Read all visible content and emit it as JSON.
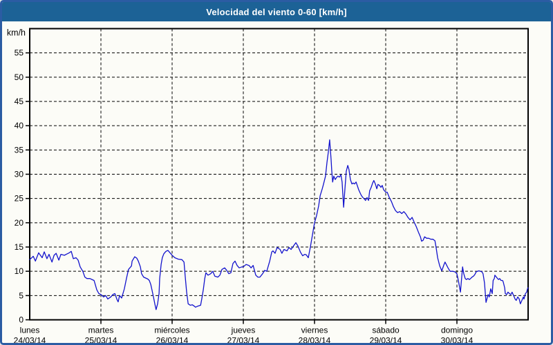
{
  "window": {
    "title": "Velocidad del viento 0-60 [km/h]"
  },
  "colors": {
    "titlebar_bg": "#1c6296",
    "titlebar_text": "#ffffff",
    "frame_border": "#2b5ca3",
    "panel_bg": "#fcfcf7",
    "plot_line": "#1212cc",
    "grid": "#000000",
    "axis": "#000000",
    "text": "#000000"
  },
  "chart_data": {
    "type": "line",
    "title": "Velocidad del viento 0-60 [km/h]",
    "grid": "dashed",
    "legend_position": "none",
    "y_axis": {
      "unit_label": "km/h",
      "min": 0,
      "max": 60,
      "tick_step": 5,
      "tick_labels": [
        "0",
        "5",
        "10",
        "15",
        "20",
        "25",
        "30",
        "35",
        "40",
        "45",
        "50",
        "55"
      ]
    },
    "x_axis": {
      "span_days": 7,
      "hours_total": 168,
      "days": [
        {
          "name": "lunes",
          "date": "24/03/14"
        },
        {
          "name": "martes",
          "date": "25/03/14"
        },
        {
          "name": "miércoles",
          "date": "26/03/14"
        },
        {
          "name": "jueves",
          "date": "27/03/14"
        },
        {
          "name": "viernes",
          "date": "28/03/14"
        },
        {
          "name": "sábado",
          "date": "29/03/14"
        },
        {
          "name": "domingo",
          "date": "30/03/14"
        }
      ]
    },
    "series": [
      {
        "name": "velocidad-del-viento",
        "x_unit": "hours_from_monday_00h",
        "y_unit": "km/h",
        "points": [
          [
            0.0,
            12.4
          ],
          [
            1.2,
            13.1
          ],
          [
            1.9,
            12.1
          ],
          [
            3.0,
            13.8
          ],
          [
            4.2,
            12.8
          ],
          [
            4.9,
            14.0
          ],
          [
            5.8,
            12.6
          ],
          [
            6.5,
            13.5
          ],
          [
            7.5,
            11.9
          ],
          [
            8.2,
            13.3
          ],
          [
            8.9,
            13.7
          ],
          [
            9.8,
            12.3
          ],
          [
            10.5,
            13.5
          ],
          [
            11.7,
            13.3
          ],
          [
            12.3,
            13.5
          ],
          [
            13.3,
            13.8
          ],
          [
            14.0,
            14.1
          ],
          [
            14.7,
            12.6
          ],
          [
            15.6,
            12.8
          ],
          [
            16.3,
            12.3
          ],
          [
            17.0,
            10.9
          ],
          [
            17.9,
            10.0
          ],
          [
            18.6,
            8.8
          ],
          [
            19.3,
            8.5
          ],
          [
            20.3,
            8.5
          ],
          [
            21.0,
            8.3
          ],
          [
            21.7,
            8.1
          ],
          [
            22.6,
            6.2
          ],
          [
            23.3,
            5.4
          ],
          [
            24.0,
            5.2
          ],
          [
            24.9,
            4.7
          ],
          [
            25.6,
            5.0
          ],
          [
            26.3,
            4.3
          ],
          [
            27.3,
            4.7
          ],
          [
            28.0,
            5.2
          ],
          [
            28.7,
            5.4
          ],
          [
            29.4,
            4.2
          ],
          [
            29.8,
            3.7
          ],
          [
            30.3,
            5.0
          ],
          [
            31.0,
            4.5
          ],
          [
            31.9,
            6.4
          ],
          [
            32.6,
            8.5
          ],
          [
            33.3,
            10.4
          ],
          [
            34.3,
            11.1
          ],
          [
            34.5,
            12.1
          ],
          [
            35.0,
            12.6
          ],
          [
            35.4,
            13.0
          ],
          [
            36.1,
            12.7
          ],
          [
            36.6,
            12.1
          ],
          [
            37.3,
            10.9
          ],
          [
            37.7,
            9.5
          ],
          [
            38.4,
            8.8
          ],
          [
            39.1,
            8.6
          ],
          [
            39.8,
            8.4
          ],
          [
            40.3,
            8.1
          ],
          [
            40.8,
            7.3
          ],
          [
            41.2,
            6.2
          ],
          [
            41.7,
            4.7
          ],
          [
            42.2,
            3.2
          ],
          [
            42.6,
            2.1
          ],
          [
            43.1,
            3.3
          ],
          [
            43.6,
            5.4
          ],
          [
            43.8,
            8.5
          ],
          [
            44.3,
            11.4
          ],
          [
            44.7,
            12.8
          ],
          [
            45.2,
            13.6
          ],
          [
            45.9,
            14.1
          ],
          [
            46.6,
            14.3
          ],
          [
            47.3,
            13.8
          ],
          [
            48.0,
            13.3
          ],
          [
            48.9,
            12.8
          ],
          [
            50.1,
            12.5
          ],
          [
            51.3,
            12.4
          ],
          [
            52.0,
            11.9
          ],
          [
            52.4,
            9.0
          ],
          [
            52.9,
            5.7
          ],
          [
            53.4,
            3.3
          ],
          [
            54.1,
            3.0
          ],
          [
            54.8,
            3.1
          ],
          [
            55.5,
            2.8
          ],
          [
            55.9,
            2.6
          ],
          [
            56.6,
            2.8
          ],
          [
            57.6,
            3.0
          ],
          [
            58.0,
            4.3
          ],
          [
            58.5,
            6.2
          ],
          [
            59.0,
            8.5
          ],
          [
            59.4,
            9.7
          ],
          [
            60.1,
            9.2
          ],
          [
            61.0,
            9.5
          ],
          [
            61.7,
            10.0
          ],
          [
            62.4,
            9.0
          ],
          [
            63.4,
            8.8
          ],
          [
            64.1,
            9.2
          ],
          [
            64.8,
            10.4
          ],
          [
            65.7,
            10.7
          ],
          [
            66.4,
            10.2
          ],
          [
            67.1,
            9.5
          ],
          [
            67.8,
            9.7
          ],
          [
            68.5,
            11.6
          ],
          [
            69.2,
            12.1
          ],
          [
            69.9,
            11.2
          ],
          [
            70.6,
            10.7
          ],
          [
            71.5,
            10.9
          ],
          [
            72.0,
            10.9
          ],
          [
            72.9,
            11.4
          ],
          [
            73.9,
            11.2
          ],
          [
            74.6,
            10.7
          ],
          [
            75.3,
            11.2
          ],
          [
            76.2,
            9.2
          ],
          [
            76.9,
            8.8
          ],
          [
            77.6,
            8.8
          ],
          [
            78.5,
            9.5
          ],
          [
            79.2,
            10.2
          ],
          [
            79.9,
            10.0
          ],
          [
            80.9,
            12.1
          ],
          [
            81.6,
            14.0
          ],
          [
            82.0,
            14.2
          ],
          [
            82.7,
            13.7
          ],
          [
            83.4,
            14.9
          ],
          [
            84.4,
            14.5
          ],
          [
            85.0,
            13.7
          ],
          [
            85.7,
            14.5
          ],
          [
            86.7,
            14.2
          ],
          [
            87.4,
            14.9
          ],
          [
            88.1,
            14.5
          ],
          [
            89.0,
            15.3
          ],
          [
            89.7,
            15.9
          ],
          [
            90.4,
            15.2
          ],
          [
            91.3,
            13.9
          ],
          [
            92.0,
            13.2
          ],
          [
            92.7,
            13.5
          ],
          [
            93.2,
            13.4
          ],
          [
            93.9,
            12.8
          ],
          [
            94.6,
            15.0
          ],
          [
            95.3,
            17.5
          ],
          [
            96.0,
            20.0
          ],
          [
            96.7,
            21.5
          ],
          [
            97.4,
            23.5
          ],
          [
            97.9,
            25.6
          ],
          [
            98.6,
            27.0
          ],
          [
            99.0,
            27.9
          ],
          [
            99.7,
            29.6
          ],
          [
            100.2,
            32.4
          ],
          [
            100.7,
            34.8
          ],
          [
            101.1,
            37.1
          ],
          [
            101.6,
            33.0
          ],
          [
            101.8,
            30.8
          ],
          [
            102.1,
            28.4
          ],
          [
            102.5,
            29.6
          ],
          [
            103.0,
            28.9
          ],
          [
            103.5,
            29.4
          ],
          [
            103.9,
            29.6
          ],
          [
            104.4,
            29.4
          ],
          [
            104.9,
            29.9
          ],
          [
            105.3,
            28.4
          ],
          [
            105.8,
            23.2
          ],
          [
            106.2,
            26.6
          ],
          [
            106.7,
            30.6
          ],
          [
            107.2,
            31.8
          ],
          [
            107.6,
            31.0
          ],
          [
            108.1,
            28.9
          ],
          [
            108.6,
            28.0
          ],
          [
            109.0,
            28.2
          ],
          [
            109.5,
            28.0
          ],
          [
            110.0,
            28.4
          ],
          [
            110.4,
            27.7
          ],
          [
            110.9,
            26.8
          ],
          [
            111.4,
            26.1
          ],
          [
            111.8,
            25.6
          ],
          [
            112.3,
            25.2
          ],
          [
            112.8,
            24.9
          ],
          [
            113.2,
            24.6
          ],
          [
            113.7,
            25.2
          ],
          [
            114.2,
            24.6
          ],
          [
            114.6,
            26.6
          ],
          [
            115.1,
            27.3
          ],
          [
            115.6,
            28.2
          ],
          [
            116.0,
            28.7
          ],
          [
            116.5,
            28.0
          ],
          [
            117.0,
            27.0
          ],
          [
            117.4,
            27.9
          ],
          [
            117.9,
            27.7
          ],
          [
            118.4,
            27.3
          ],
          [
            118.8,
            27.7
          ],
          [
            119.3,
            26.8
          ],
          [
            120.0,
            26.3
          ],
          [
            120.5,
            26.3
          ],
          [
            121.2,
            25.2
          ],
          [
            121.9,
            24.4
          ],
          [
            122.6,
            23.3
          ],
          [
            123.3,
            22.5
          ],
          [
            124.0,
            22.1
          ],
          [
            124.7,
            22.3
          ],
          [
            125.4,
            21.9
          ],
          [
            126.1,
            22.3
          ],
          [
            126.8,
            21.8
          ],
          [
            127.5,
            21.1
          ],
          [
            128.2,
            20.6
          ],
          [
            128.9,
            21.1
          ],
          [
            129.6,
            20.1
          ],
          [
            130.3,
            19.2
          ],
          [
            131.0,
            18.1
          ],
          [
            131.7,
            17.1
          ],
          [
            132.1,
            16.2
          ],
          [
            132.6,
            16.4
          ],
          [
            133.1,
            17.1
          ],
          [
            133.8,
            16.8
          ],
          [
            134.5,
            16.8
          ],
          [
            135.2,
            16.6
          ],
          [
            135.9,
            16.6
          ],
          [
            136.6,
            16.3
          ],
          [
            137.0,
            14.8
          ],
          [
            137.5,
            12.8
          ],
          [
            138.2,
            11.1
          ],
          [
            138.9,
            10.1
          ],
          [
            139.6,
            11.3
          ],
          [
            140.0,
            11.9
          ],
          [
            141.0,
            10.7
          ],
          [
            141.7,
            10.0
          ],
          [
            142.6,
            10.0
          ],
          [
            143.3,
            9.9
          ],
          [
            144.0,
            9.5
          ],
          [
            144.5,
            8.1
          ],
          [
            145.2,
            5.7
          ],
          [
            145.9,
            10.9
          ],
          [
            146.3,
            9.5
          ],
          [
            146.8,
            8.5
          ],
          [
            147.2,
            8.3
          ],
          [
            147.7,
            8.5
          ],
          [
            148.2,
            8.3
          ],
          [
            148.6,
            8.5
          ],
          [
            149.1,
            8.8
          ],
          [
            149.6,
            9.0
          ],
          [
            150.0,
            9.3
          ],
          [
            150.5,
            9.9
          ],
          [
            151.4,
            10.1
          ],
          [
            152.4,
            9.9
          ],
          [
            152.8,
            9.5
          ],
          [
            153.3,
            7.6
          ],
          [
            153.8,
            3.6
          ],
          [
            154.5,
            5.2
          ],
          [
            154.9,
            4.7
          ],
          [
            155.4,
            6.4
          ],
          [
            155.9,
            5.4
          ],
          [
            156.2,
            8.1
          ],
          [
            156.6,
            8.5
          ],
          [
            156.8,
            9.2
          ],
          [
            157.3,
            8.8
          ],
          [
            157.7,
            8.5
          ],
          [
            158.0,
            8.3
          ],
          [
            158.4,
            8.5
          ],
          [
            158.9,
            8.1
          ],
          [
            159.4,
            8.1
          ],
          [
            159.6,
            7.8
          ],
          [
            160.1,
            6.6
          ],
          [
            160.3,
            5.4
          ],
          [
            160.8,
            5.2
          ],
          [
            161.2,
            5.7
          ],
          [
            161.7,
            5.4
          ],
          [
            162.2,
            5.2
          ],
          [
            162.6,
            5.7
          ],
          [
            163.1,
            5.0
          ],
          [
            163.6,
            4.3
          ],
          [
            164.0,
            4.0
          ],
          [
            164.5,
            4.7
          ],
          [
            165.0,
            4.3
          ],
          [
            165.4,
            3.3
          ],
          [
            165.9,
            4.0
          ],
          [
            166.4,
            4.7
          ],
          [
            166.6,
            4.3
          ],
          [
            167.1,
            5.4
          ],
          [
            167.5,
            5.7
          ],
          [
            167.8,
            6.4
          ],
          [
            168.0,
            6.6
          ]
        ]
      }
    ]
  }
}
